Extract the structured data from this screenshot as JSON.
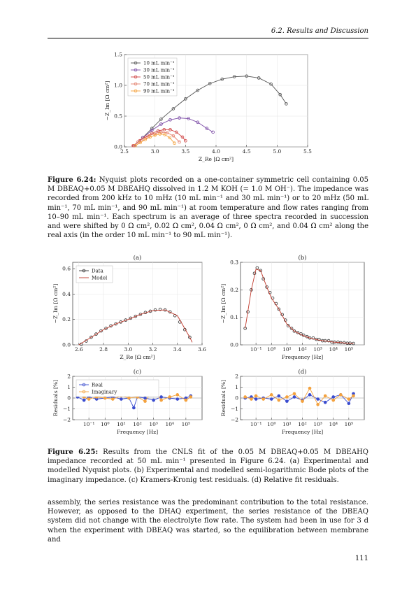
{
  "header": {
    "section": "6.2.  Results and Discussion"
  },
  "page_number": "111",
  "colors": {
    "s10": "#555555",
    "s30": "#7b4ba6",
    "s50": "#d04545",
    "s70": "#e37f6d",
    "s90": "#f4a23e",
    "model": "#c0392b",
    "real": "#3a4ccf",
    "imag": "#f4a23e"
  },
  "figure_6_24": {
    "caption_label": "Figure 6.24:",
    "caption_text": "Nyquist plots recorded on a one-container symmetric cell containing 0.05 M DBEAQ+0.05 M DBEAHQ dissolved in 1.2 M KOH (= 1.0 M OH⁻). The impedance was recorded from 200 kHz to 10 mHz (10 mL min⁻¹ and 30 mL min⁻¹) or to 20 mHz (50 mL min⁻¹, 70 mL min⁻¹, and 90 mL min⁻¹) at room temperature and flow rates ranging from 10–90 mL min⁻¹. Each spectrum is an average of three spectra recorded in succession and were shifted by 0 Ω cm², 0.02 Ω cm², 0.04 Ω cm², 0 Ω cm², and 0.04 Ω cm² along the real axis (in the order 10 mL min⁻¹ to 90 mL min⁻¹).",
    "chart_data": {
      "type": "scatter",
      "xlabel": "Z_Re [Ω cm²]",
      "ylabel": "−Z_Im [Ω cm²]",
      "xlim": [
        2.5,
        5.5
      ],
      "ylim": [
        0.0,
        1.5
      ],
      "xticks": [
        "2.5",
        "3.0",
        "3.5",
        "4.0",
        "4.5",
        "5.0",
        "5.5"
      ],
      "yticks": [
        "0.0",
        "0.5",
        "1.0",
        "1.5"
      ],
      "legend": "top-left",
      "series": [
        {
          "name": "10 mL min⁻¹",
          "x": [
            2.65,
            2.8,
            2.95,
            3.1,
            3.3,
            3.5,
            3.7,
            3.9,
            4.1,
            4.3,
            4.5,
            4.7,
            4.9,
            5.05,
            5.15
          ],
          "y": [
            0.02,
            0.15,
            0.3,
            0.45,
            0.62,
            0.78,
            0.92,
            1.03,
            1.1,
            1.14,
            1.15,
            1.12,
            1.02,
            0.85,
            0.7
          ]
        },
        {
          "name": "30 mL min⁻¹",
          "x": [
            2.66,
            2.8,
            2.95,
            3.1,
            3.25,
            3.4,
            3.55,
            3.7,
            3.85,
            3.95
          ],
          "y": [
            0.02,
            0.15,
            0.27,
            0.37,
            0.44,
            0.47,
            0.46,
            0.4,
            0.3,
            0.24
          ]
        },
        {
          "name": "50 mL min⁻¹",
          "x": [
            2.65,
            2.75,
            2.85,
            2.95,
            3.05,
            3.15,
            3.25,
            3.35,
            3.45,
            3.5
          ],
          "y": [
            0.02,
            0.1,
            0.16,
            0.22,
            0.26,
            0.28,
            0.28,
            0.24,
            0.16,
            0.1
          ]
        },
        {
          "name": "70 mL min⁻¹",
          "x": [
            2.64,
            2.72,
            2.8,
            2.9,
            3.0,
            3.1,
            3.2,
            3.3,
            3.4
          ],
          "y": [
            0.02,
            0.08,
            0.13,
            0.18,
            0.22,
            0.24,
            0.23,
            0.18,
            0.08
          ]
        },
        {
          "name": "90 mL min⁻¹",
          "x": [
            2.68,
            2.76,
            2.84,
            2.92,
            3.0,
            3.08,
            3.16,
            3.24,
            3.32
          ],
          "y": [
            0.02,
            0.07,
            0.12,
            0.16,
            0.19,
            0.21,
            0.2,
            0.15,
            0.06
          ]
        }
      ]
    }
  },
  "figure_6_25": {
    "caption_label": "Figure 6.25:",
    "caption_text": "Results from the CNLS fit of the 0.05 M DBEAQ+0.05 M DBEAHQ impedance recorded at 50 mL min⁻¹ presented in Figure 6.24. (a) Experimental and modelled Nyquist plots. (b) Experimental and modelled semi-logarithmic Bode plots of the imaginary impedance. (c) Kramers-Kronig test residuals. (d) Relative fit residuals.",
    "chart_data": [
      {
        "panel": "(a)",
        "type": "scatter",
        "xlabel": "Z_Re [Ω cm²]",
        "ylabel": "−Z_Im [Ω cm²]",
        "xlim": [
          2.55,
          3.6
        ],
        "ylim": [
          0.0,
          0.65
        ],
        "xticks": [
          "2.6",
          "2.8",
          "3.0",
          "3.2",
          "3.4",
          "3.6"
        ],
        "yticks": [
          "0.0",
          "0.2",
          "0.4",
          "0.6"
        ],
        "legend": "top-left",
        "series": [
          {
            "name": "Data",
            "x": [
              2.62,
              2.66,
              2.7,
              2.74,
              2.78,
              2.82,
              2.86,
              2.9,
              2.94,
              2.98,
              3.02,
              3.06,
              3.1,
              3.14,
              3.18,
              3.22,
              3.26,
              3.3,
              3.34,
              3.38,
              3.42,
              3.46,
              3.5
            ],
            "y": [
              0.005,
              0.03,
              0.06,
              0.085,
              0.11,
              0.13,
              0.15,
              0.165,
              0.18,
              0.195,
              0.21,
              0.225,
              0.24,
              0.255,
              0.265,
              0.275,
              0.28,
              0.275,
              0.26,
              0.23,
              0.18,
              0.12,
              0.06
            ]
          },
          {
            "name": "Model",
            "x": [
              2.6,
              2.7,
              2.8,
              2.9,
              3.0,
              3.1,
              3.2,
              3.3,
              3.4,
              3.5,
              3.52
            ],
            "y": [
              0.0,
              0.06,
              0.12,
              0.165,
              0.2,
              0.24,
              0.27,
              0.275,
              0.23,
              0.06,
              0.02
            ]
          }
        ]
      },
      {
        "panel": "(b)",
        "type": "scatter",
        "xlabel": "Frequency [Hz]",
        "ylabel": "−Z_Im [Ω cm²]",
        "xscale": "log",
        "xlim": [
          0.01,
          1000000
        ],
        "ylim": [
          0.0,
          0.3
        ],
        "xticks": [
          "10⁻¹",
          "10⁰",
          "10¹",
          "10²",
          "10³",
          "10⁴",
          "10⁵"
        ],
        "yticks": [
          "0.0",
          "0.1",
          "0.2",
          "0.3"
        ],
        "series": [
          {
            "name": "Data",
            "x": [
              0.02,
              0.03,
              0.05,
              0.08,
              0.12,
              0.2,
              0.3,
              0.5,
              0.8,
              1.2,
              2,
              3,
              5,
              8,
              12,
              20,
              30,
              50,
              80,
              120,
              200,
              300,
              500,
              800,
              1200,
              2000,
              3000,
              5000,
              8000,
              12000,
              20000,
              30000,
              50000,
              80000,
              120000,
              200000
            ],
            "y": [
              0.06,
              0.12,
              0.2,
              0.26,
              0.28,
              0.27,
              0.24,
              0.21,
              0.19,
              0.17,
              0.15,
              0.13,
              0.11,
              0.09,
              0.07,
              0.06,
              0.05,
              0.045,
              0.04,
              0.035,
              0.03,
              0.025,
              0.025,
              0.02,
              0.02,
              0.015,
              0.015,
              0.015,
              0.01,
              0.01,
              0.01,
              0.008,
              0.008,
              0.006,
              0.006,
              0.005
            ]
          },
          {
            "name": "Model",
            "x": [
              0.02,
              0.05,
              0.1,
              0.2,
              0.5,
              1,
              3,
              10,
              30,
              100,
              300,
              1000,
              10000,
              100000,
              200000
            ],
            "y": [
              0.06,
              0.2,
              0.275,
              0.27,
              0.21,
              0.17,
              0.13,
              0.075,
              0.05,
              0.035,
              0.025,
              0.018,
              0.01,
              0.006,
              0.005
            ]
          }
        ]
      },
      {
        "panel": "(c)",
        "type": "line",
        "xlabel": "Frequency [Hz]",
        "ylabel": "Residuals [%]",
        "xscale": "log",
        "xlim": [
          0.01,
          1000000
        ],
        "ylim": [
          -2,
          2
        ],
        "xticks": [
          "10⁻¹",
          "10⁰",
          "10¹",
          "10²",
          "10³",
          "10⁴",
          "10⁵"
        ],
        "yticks": [
          "−2",
          "−1",
          "0",
          "1",
          "2"
        ],
        "legend": "top-left",
        "series": [
          {
            "name": "Real",
            "x": [
              0.02,
              0.05,
              0.1,
              0.3,
              1,
              3,
              10,
              30,
              60,
              100,
              300,
              1000,
              3000,
              10000,
              30000,
              100000,
              200000
            ],
            "y": [
              0.1,
              -0.2,
              0.1,
              -0.1,
              0.0,
              0.1,
              -0.1,
              0.0,
              -0.9,
              0.1,
              0.0,
              -0.2,
              0.1,
              0.0,
              -0.1,
              0.0,
              0.2
            ]
          },
          {
            "name": "Imaginary",
            "x": [
              0.02,
              0.05,
              0.1,
              0.3,
              1,
              3,
              10,
              30,
              100,
              300,
              1000,
              3000,
              10000,
              30000,
              100000,
              200000
            ],
            "y": [
              0.3,
              0.1,
              -0.1,
              0.1,
              0.0,
              -0.1,
              0.2,
              0.0,
              0.1,
              -0.3,
              0.8,
              -0.2,
              0.1,
              0.3,
              -0.2,
              0.1
            ]
          }
        ]
      },
      {
        "panel": "(d)",
        "type": "line",
        "xlabel": "Frequency [Hz]",
        "ylabel": "Residuals [%]",
        "xscale": "log",
        "xlim": [
          0.01,
          1000000
        ],
        "ylim": [
          -2,
          2
        ],
        "xticks": [
          "10⁻¹",
          "10⁰",
          "10¹",
          "10²",
          "10³",
          "10⁴",
          "10⁵"
        ],
        "yticks": [
          "−2",
          "−1",
          "0",
          "1",
          "2"
        ],
        "series": [
          {
            "name": "Real",
            "x": [
              0.02,
              0.05,
              0.1,
              0.3,
              1,
              3,
              10,
              30,
              100,
              300,
              1000,
              3000,
              10000,
              30000,
              100000,
              200000
            ],
            "y": [
              0.0,
              0.1,
              -0.1,
              0.0,
              -0.1,
              0.2,
              -0.3,
              0.1,
              -0.2,
              0.3,
              -0.1,
              -0.4,
              0.1,
              0.3,
              -0.5,
              0.4
            ]
          },
          {
            "name": "Imaginary",
            "x": [
              0.02,
              0.05,
              0.1,
              0.3,
              1,
              3,
              10,
              30,
              100,
              300,
              1000,
              3000,
              10000,
              30000,
              100000,
              200000
            ],
            "y": [
              0.1,
              -0.1,
              0.2,
              -0.1,
              0.3,
              -0.2,
              0.1,
              0.4,
              -0.3,
              0.9,
              -0.6,
              0.2,
              -0.2,
              0.3,
              -0.1,
              0.2
            ]
          }
        ]
      }
    ]
  },
  "body_paragraph": "assembly, the series resistance was the predominant contribution to the total resistance. However, as opposed to the DHAQ experiment, the series resistance of the DBEAQ system did not change with the electrolyte flow rate. The system had been in use for 3 d when the experiment with DBEAQ was started, so the equilibration between membrane and"
}
